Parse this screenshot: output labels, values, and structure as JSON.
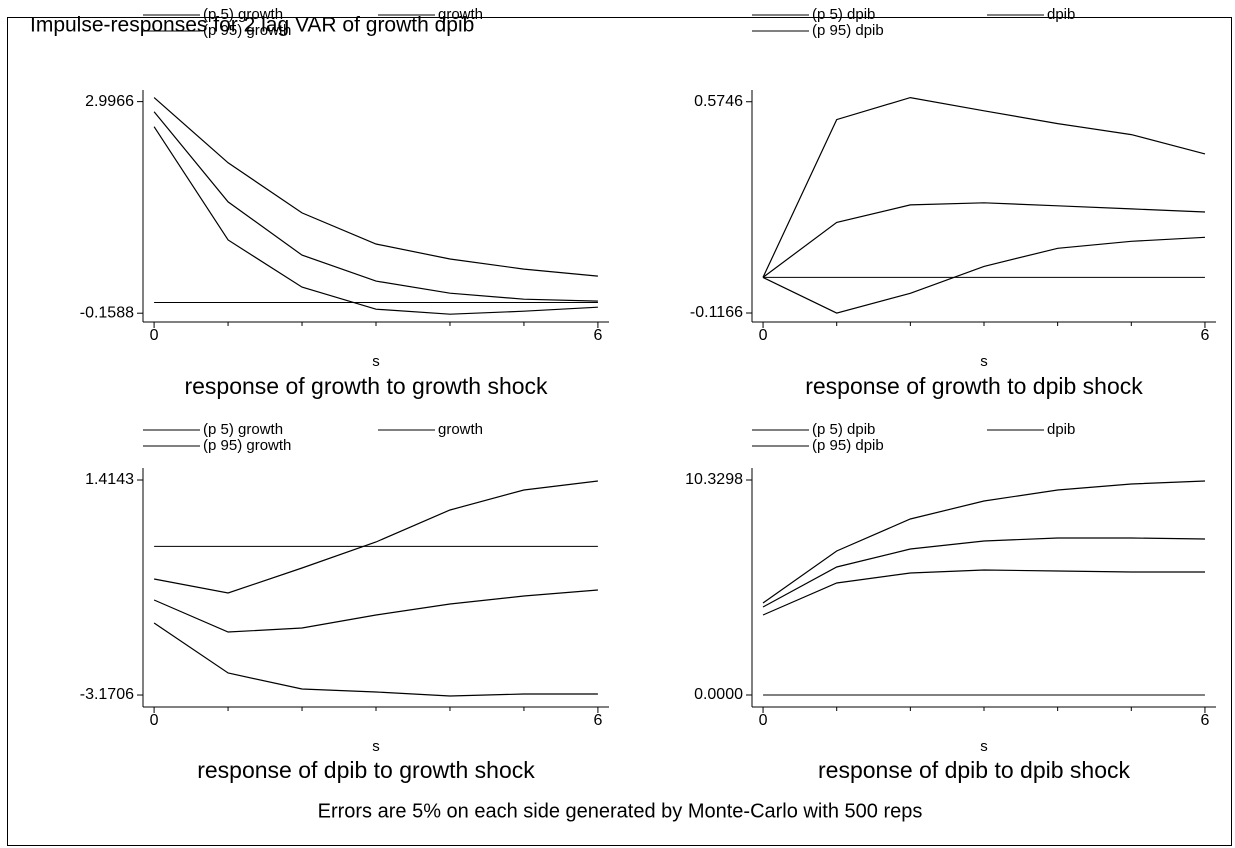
{
  "title": "Impulse-responses for 2 lag VAR of growth dpib",
  "note": "Errors are 5% on each side generated by Monte-Carlo with 500 reps",
  "chart_data": [
    {
      "type": "line",
      "title": "response of growth to growth shock",
      "x_label": "s",
      "x": [
        0,
        1,
        2,
        3,
        4,
        5,
        6
      ],
      "xlim": [
        -0.15,
        6.15
      ],
      "xticks": [
        0,
        6
      ],
      "xminorticks": [
        1,
        2,
        3,
        4,
        5
      ],
      "ylim": [
        -0.29,
        3.17
      ],
      "yticks": [
        -0.1588,
        2.9966
      ],
      "yline": 0,
      "series": [
        {
          "name": "(p 5) growth",
          "color": "#000000",
          "values": [
            2.623,
            0.933,
            0.23,
            -0.099,
            -0.174,
            -0.129,
            -0.069
          ]
        },
        {
          "name": "growth",
          "color": "#000000",
          "values": [
            2.847,
            1.501,
            0.708,
            0.32,
            0.14,
            0.05,
            0.021
          ]
        },
        {
          "name": "(p 95) growth",
          "color": "#000000",
          "values": [
            3.057,
            2.084,
            1.337,
            0.873,
            0.649,
            0.499,
            0.394
          ]
        }
      ]
    },
    {
      "type": "line",
      "title": "response of growth to dpib shock",
      "x_label": "s",
      "x": [
        0,
        1,
        2,
        3,
        4,
        5,
        6
      ],
      "xlim": [
        -0.15,
        6.15
      ],
      "xticks": [
        0,
        6
      ],
      "xminorticks": [
        1,
        2,
        3,
        4,
        5
      ],
      "ylim": [
        -0.146,
        0.613
      ],
      "yticks": [
        -0.1166,
        0.5746
      ],
      "yline": 0,
      "series": [
        {
          "name": "(p 5) dpib",
          "color": "#000000",
          "values": [
            0,
            -0.117,
            -0.052,
            0.036,
            0.095,
            0.118,
            0.131
          ]
        },
        {
          "name": "dpib",
          "color": "#000000",
          "values": [
            0,
            0.18,
            0.237,
            0.244,
            0.234,
            0.224,
            0.214
          ]
        },
        {
          "name": "(p 95) dpib",
          "color": "#000000",
          "values": [
            0,
            0.516,
            0.588,
            0.545,
            0.503,
            0.467,
            0.404
          ]
        }
      ]
    },
    {
      "type": "line",
      "title": "response of dpib to growth shock",
      "x_label": "s",
      "x": [
        0,
        1,
        2,
        3,
        4,
        5,
        6
      ],
      "xlim": [
        -0.15,
        6.15
      ],
      "xticks": [
        0,
        6
      ],
      "xminorticks": [
        1,
        2,
        3,
        4,
        5
      ],
      "ylim": [
        -3.426,
        1.67
      ],
      "yticks": [
        -3.1706,
        1.4143
      ],
      "yline": 0,
      "series": [
        {
          "name": "(p 5) growth",
          "color": "#000000",
          "values": [
            -1.635,
            -2.702,
            -3.043,
            -3.107,
            -3.192,
            -3.149,
            -3.149
          ]
        },
        {
          "name": "growth",
          "color": "#000000",
          "values": [
            -1.145,
            -1.827,
            -1.742,
            -1.465,
            -1.23,
            -1.059,
            -0.931
          ]
        },
        {
          "name": "(p 95) growth",
          "color": "#000000",
          "values": [
            -0.697,
            -0.996,
            -0.463,
            0.092,
            0.775,
            1.201,
            1.393
          ]
        }
      ]
    },
    {
      "type": "line",
      "title": "response of dpib to dpib shock",
      "x_label": "s",
      "x": [
        0,
        1,
        2,
        3,
        4,
        5,
        6
      ],
      "xlim": [
        -0.15,
        6.15
      ],
      "xticks": [
        0,
        6
      ],
      "xminorticks": [
        1,
        2,
        3,
        4,
        5
      ],
      "ylim": [
        -0.577,
        10.906
      ],
      "yticks": [
        {
          "value": 0,
          "label": "0.0000"
        },
        10.3298
      ],
      "yline": 0,
      "series": [
        {
          "name": "(p 5) dpib",
          "color": "#000000",
          "values": [
            3.843,
            5.381,
            5.861,
            6.005,
            5.957,
            5.909,
            5.909
          ]
        },
        {
          "name": "dpib",
          "color": "#000000",
          "values": [
            4.228,
            6.15,
            7.015,
            7.399,
            7.543,
            7.543,
            7.495
          ]
        },
        {
          "name": "(p 95) dpib",
          "color": "#000000",
          "values": [
            4.42,
            6.919,
            8.456,
            9.321,
            9.85,
            10.138,
            10.282
          ]
        }
      ]
    }
  ]
}
